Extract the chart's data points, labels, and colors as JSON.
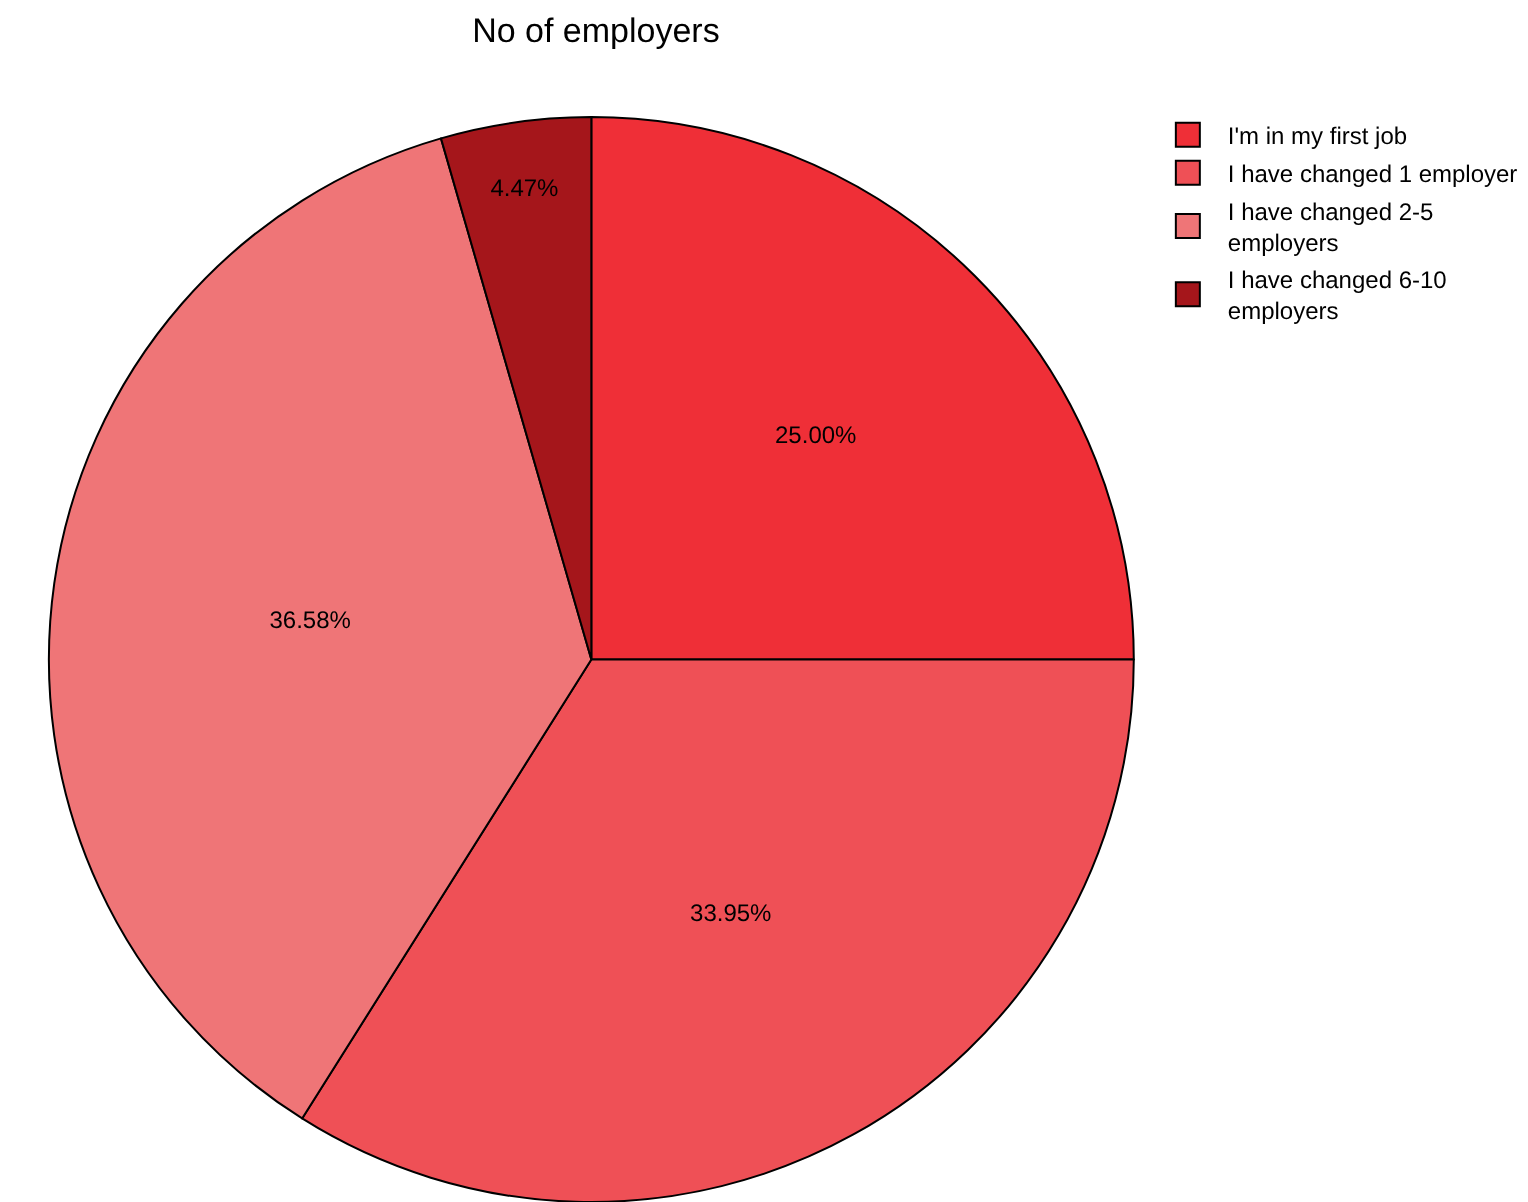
{
  "chart_data": {
    "type": "pie",
    "title": "No of employers",
    "categories": [
      "I'm in my first job",
      "I have changed 1 employer",
      "I have changed 2-5 employers",
      "I have changed 6-10 employers"
    ],
    "values": [
      25.0,
      33.95,
      36.58,
      4.47
    ],
    "value_labels": [
      "25.00%",
      "33.95%",
      "36.58%",
      "4.47%"
    ],
    "colors": [
      "#ef2f37",
      "#ef5056",
      "#ef7577",
      "#a5161b"
    ],
    "legend": "top right"
  }
}
